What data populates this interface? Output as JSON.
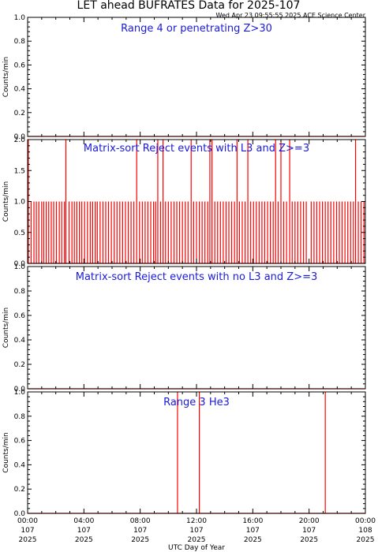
{
  "header": {
    "title": "LET ahead BUFRATES Data for 2025-107",
    "timestamp": "Wed Apr 23 09:55:55 2025 ACE Science Center"
  },
  "x_axis": {
    "label": "UTC Day of Year",
    "ticks": [
      {
        "time": "00:00",
        "doy": "107",
        "year": "2025"
      },
      {
        "time": "04:00",
        "doy": "107",
        "year": "2025"
      },
      {
        "time": "08:00",
        "doy": "107",
        "year": "2025"
      },
      {
        "time": "12:00",
        "doy": "107",
        "year": "2025"
      },
      {
        "time": "16:00",
        "doy": "107",
        "year": "2025"
      },
      {
        "time": "20:00",
        "doy": "107",
        "year": "2025"
      },
      {
        "time": "00:00",
        "doy": "108",
        "year": "2025"
      }
    ]
  },
  "colors": {
    "data_line": "#ff0000",
    "panel_title": "#1a1adb",
    "axes": "#000000"
  },
  "chart_data": [
    {
      "type": "line",
      "title": "Range 4 or  penetrating Z>30",
      "ylabel": "Counts/min",
      "xlabel": "UTC Day of Year",
      "xlim": [
        0,
        24
      ],
      "ylim": [
        0,
        1
      ],
      "yticks": [
        "0.0",
        "0.2",
        "0.4",
        "0.6",
        "0.8",
        "1.0"
      ],
      "baseline": 0,
      "points": []
    },
    {
      "type": "line",
      "title": "Matrix-sort Reject events with L3 and Z>=3",
      "ylabel": "Counts/min",
      "xlabel": "UTC Day of Year",
      "xlim": [
        0,
        24
      ],
      "ylim": [
        0,
        2
      ],
      "yticks": [
        "0.0",
        "0.5",
        "1.0",
        "1.5",
        "2.0"
      ],
      "baseline": 0,
      "points": [
        {
          "x": 0.05,
          "y": 2
        },
        {
          "x": 0.25,
          "y": 1
        },
        {
          "x": 0.45,
          "y": 1
        },
        {
          "x": 0.62,
          "y": 1
        },
        {
          "x": 0.8,
          "y": 1
        },
        {
          "x": 1.0,
          "y": 1
        },
        {
          "x": 1.15,
          "y": 1
        },
        {
          "x": 1.32,
          "y": 1
        },
        {
          "x": 1.5,
          "y": 1
        },
        {
          "x": 1.68,
          "y": 1
        },
        {
          "x": 1.85,
          "y": 1
        },
        {
          "x": 2.05,
          "y": 1
        },
        {
          "x": 2.25,
          "y": 1
        },
        {
          "x": 2.42,
          "y": 1
        },
        {
          "x": 2.62,
          "y": 1
        },
        {
          "x": 2.72,
          "y": 2
        },
        {
          "x": 2.95,
          "y": 1
        },
        {
          "x": 3.15,
          "y": 1
        },
        {
          "x": 3.32,
          "y": 1
        },
        {
          "x": 3.5,
          "y": 1
        },
        {
          "x": 3.68,
          "y": 1
        },
        {
          "x": 3.85,
          "y": 1
        },
        {
          "x": 4.05,
          "y": 1
        },
        {
          "x": 4.25,
          "y": 1
        },
        {
          "x": 4.45,
          "y": 1
        },
        {
          "x": 4.62,
          "y": 1
        },
        {
          "x": 4.8,
          "y": 1
        },
        {
          "x": 4.95,
          "y": 1
        },
        {
          "x": 5.15,
          "y": 1
        },
        {
          "x": 5.35,
          "y": 1
        },
        {
          "x": 5.55,
          "y": 1
        },
        {
          "x": 5.75,
          "y": 1
        },
        {
          "x": 5.95,
          "y": 1
        },
        {
          "x": 6.15,
          "y": 1
        },
        {
          "x": 6.35,
          "y": 1
        },
        {
          "x": 6.55,
          "y": 1
        },
        {
          "x": 6.75,
          "y": 1
        },
        {
          "x": 6.95,
          "y": 1
        },
        {
          "x": 7.15,
          "y": 1
        },
        {
          "x": 7.35,
          "y": 1
        },
        {
          "x": 7.55,
          "y": 1
        },
        {
          "x": 7.75,
          "y": 2
        },
        {
          "x": 7.95,
          "y": 1
        },
        {
          "x": 8.15,
          "y": 1
        },
        {
          "x": 8.35,
          "y": 1
        },
        {
          "x": 8.55,
          "y": 1
        },
        {
          "x": 8.75,
          "y": 1
        },
        {
          "x": 8.95,
          "y": 1
        },
        {
          "x": 9.1,
          "y": 1
        },
        {
          "x": 9.25,
          "y": 2
        },
        {
          "x": 9.45,
          "y": 1
        },
        {
          "x": 9.62,
          "y": 2
        },
        {
          "x": 9.8,
          "y": 1
        },
        {
          "x": 10.0,
          "y": 1
        },
        {
          "x": 10.2,
          "y": 1
        },
        {
          "x": 10.4,
          "y": 1
        },
        {
          "x": 10.6,
          "y": 1
        },
        {
          "x": 10.8,
          "y": 1
        },
        {
          "x": 11.0,
          "y": 1
        },
        {
          "x": 11.2,
          "y": 1
        },
        {
          "x": 11.4,
          "y": 1
        },
        {
          "x": 11.62,
          "y": 2
        },
        {
          "x": 11.8,
          "y": 1
        },
        {
          "x": 12.0,
          "y": 1
        },
        {
          "x": 12.2,
          "y": 1
        },
        {
          "x": 12.4,
          "y": 1
        },
        {
          "x": 12.6,
          "y": 1
        },
        {
          "x": 12.8,
          "y": 1
        },
        {
          "x": 12.95,
          "y": 2
        },
        {
          "x": 13.1,
          "y": 2
        },
        {
          "x": 13.3,
          "y": 1
        },
        {
          "x": 13.5,
          "y": 1
        },
        {
          "x": 13.7,
          "y": 1
        },
        {
          "x": 13.9,
          "y": 1
        },
        {
          "x": 14.1,
          "y": 1
        },
        {
          "x": 14.3,
          "y": 1
        },
        {
          "x": 14.5,
          "y": 1
        },
        {
          "x": 14.7,
          "y": 1
        },
        {
          "x": 14.88,
          "y": 2
        },
        {
          "x": 15.05,
          "y": 1
        },
        {
          "x": 15.25,
          "y": 1
        },
        {
          "x": 15.45,
          "y": 1
        },
        {
          "x": 15.65,
          "y": 2
        },
        {
          "x": 15.85,
          "y": 1
        },
        {
          "x": 16.05,
          "y": 1
        },
        {
          "x": 16.25,
          "y": 1
        },
        {
          "x": 16.45,
          "y": 1
        },
        {
          "x": 16.65,
          "y": 1
        },
        {
          "x": 16.85,
          "y": 1
        },
        {
          "x": 17.05,
          "y": 1
        },
        {
          "x": 17.25,
          "y": 1
        },
        {
          "x": 17.45,
          "y": 1
        },
        {
          "x": 17.62,
          "y": 2
        },
        {
          "x": 17.8,
          "y": 1
        },
        {
          "x": 18.0,
          "y": 2
        },
        {
          "x": 18.2,
          "y": 1
        },
        {
          "x": 18.4,
          "y": 1
        },
        {
          "x": 18.62,
          "y": 2
        },
        {
          "x": 18.8,
          "y": 1
        },
        {
          "x": 19.0,
          "y": 1
        },
        {
          "x": 19.2,
          "y": 1
        },
        {
          "x": 19.4,
          "y": 1
        },
        {
          "x": 19.6,
          "y": 1
        },
        {
          "x": 19.8,
          "y": 1
        },
        {
          "x": 20.15,
          "y": 1
        },
        {
          "x": 20.35,
          "y": 1
        },
        {
          "x": 20.55,
          "y": 1
        },
        {
          "x": 20.75,
          "y": 1
        },
        {
          "x": 20.95,
          "y": 1
        },
        {
          "x": 21.15,
          "y": 1
        },
        {
          "x": 21.35,
          "y": 1
        },
        {
          "x": 21.55,
          "y": 1
        },
        {
          "x": 21.75,
          "y": 1
        },
        {
          "x": 21.95,
          "y": 1
        },
        {
          "x": 22.15,
          "y": 1
        },
        {
          "x": 22.35,
          "y": 1
        },
        {
          "x": 22.55,
          "y": 1
        },
        {
          "x": 22.75,
          "y": 1
        },
        {
          "x": 22.95,
          "y": 1
        },
        {
          "x": 23.15,
          "y": 1
        },
        {
          "x": 23.3,
          "y": 2
        },
        {
          "x": 23.5,
          "y": 1
        },
        {
          "x": 23.7,
          "y": 1
        },
        {
          "x": 23.9,
          "y": 1
        }
      ]
    },
    {
      "type": "line",
      "title": "Matrix-sort Reject events with no L3 and Z>=3",
      "ylabel": "Counts/min",
      "xlabel": "UTC Day of Year",
      "xlim": [
        0,
        24
      ],
      "ylim": [
        0,
        1
      ],
      "yticks": [
        "0.0",
        "0.2",
        "0.4",
        "0.6",
        "0.8",
        "1.0"
      ],
      "baseline": 0,
      "points": []
    },
    {
      "type": "line",
      "title": "Range 3 He3",
      "ylabel": "Counts/min",
      "xlabel": "UTC Day of Year",
      "xlim": [
        0,
        24
      ],
      "ylim": [
        0,
        1
      ],
      "yticks": [
        "0.0",
        "0.2",
        "0.4",
        "0.6",
        "0.8",
        "1.0"
      ],
      "baseline": 0,
      "points": [
        {
          "x": 10.65,
          "y": 1
        },
        {
          "x": 12.2,
          "y": 1
        },
        {
          "x": 21.15,
          "y": 1
        }
      ]
    }
  ]
}
